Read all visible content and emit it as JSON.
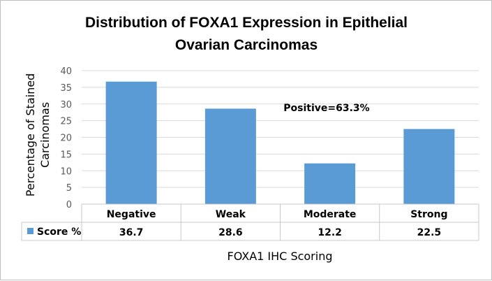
{
  "chart_data": {
    "type": "bar",
    "title": [
      "Distribution  of FOXA1 Expression in Epithelial",
      "Ovarian Carcinomas"
    ],
    "categories": [
      "Negative",
      "Weak",
      "Moderate",
      "Strong"
    ],
    "series": [
      {
        "name": "Score %",
        "values": [
          36.7,
          28.6,
          12.2,
          22.5
        ]
      }
    ],
    "value_labels": [
      "36.7",
      "28.6",
      "12.2",
      "22.5"
    ],
    "ylabel": [
      "Percentage of Stained",
      "Carcinomas"
    ],
    "xlabel": "FOXA1 IHC Scoring",
    "ylim": [
      0,
      40
    ],
    "yticks": [
      "0",
      "5",
      "10",
      "15",
      "20",
      "25",
      "30",
      "35",
      "40"
    ],
    "annotation": "Positive=63.3%",
    "grid": true,
    "legend": "data table",
    "bar_color": "#5b9bd5"
  }
}
